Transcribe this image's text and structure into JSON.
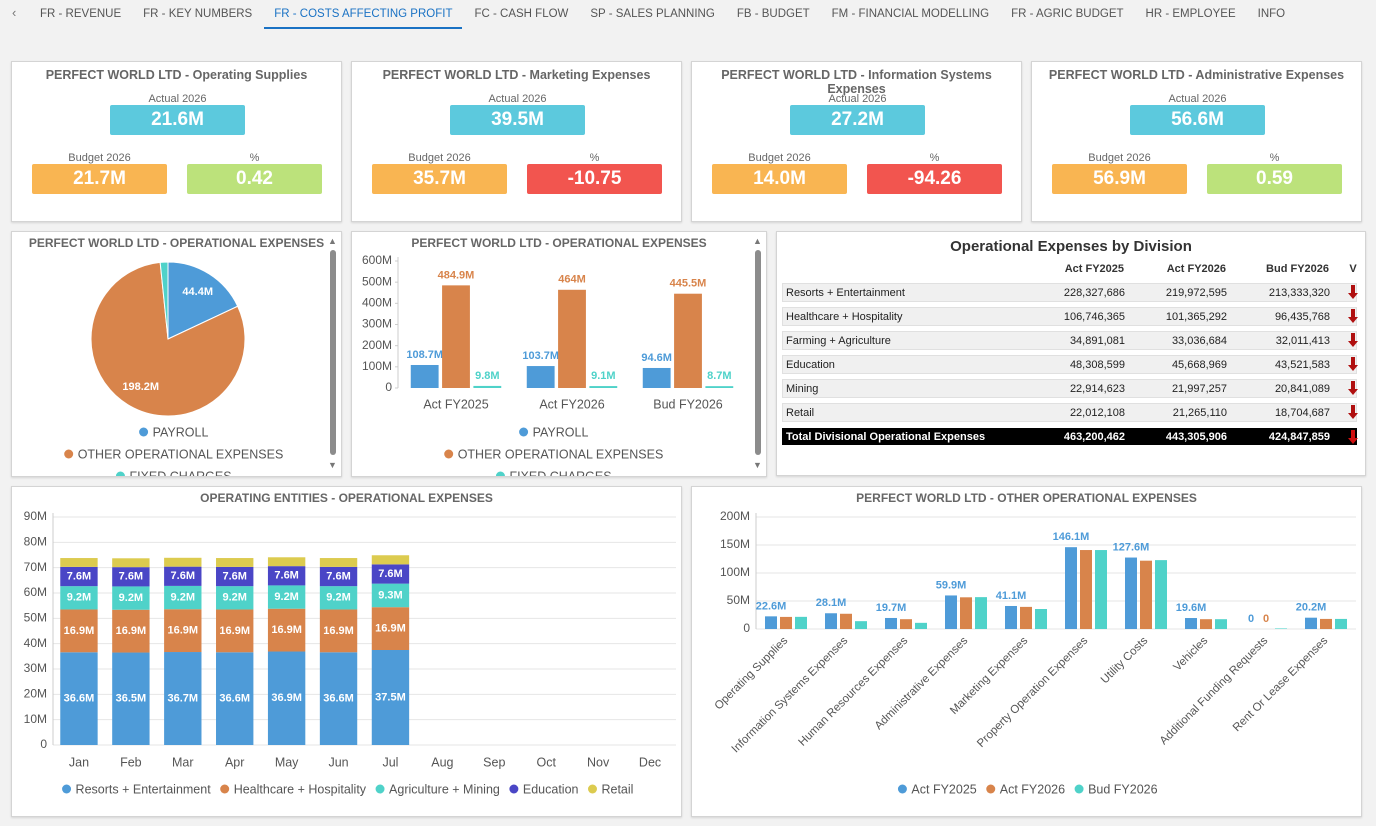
{
  "tabs": [
    "FR - REVENUE",
    "FR - KEY NUMBERS",
    "FR - COSTS AFFECTING PROFIT",
    "FC - CASH FLOW",
    "SP - SALES PLANNING",
    "FB - BUDGET",
    "FM - FINANCIAL MODELLING",
    "FR - AGRIC BUDGET",
    "HR - EMPLOYEE",
    "INFO"
  ],
  "active_tab": 2,
  "kpi_cards": [
    {
      "title": "PERFECT WORLD LTD - Operating Supplies",
      "actual_label": "Actual 2026",
      "actual": "21.6M",
      "budget_label": "Budget 2026",
      "budget": "21.7M",
      "pct_label": "%",
      "pct": 0.42
    },
    {
      "title": "PERFECT WORLD LTD - Marketing Expenses",
      "actual_label": "Actual 2026",
      "actual": "39.5M",
      "budget_label": "Budget 2026",
      "budget": "35.7M",
      "pct_label": "%",
      "pct": -10.75
    },
    {
      "title": "PERFECT WORLD LTD - Information Systems Expenses",
      "actual_label": "Actual 2026",
      "actual": "27.2M",
      "budget_label": "Budget 2026",
      "budget": "14.0M",
      "pct_label": "%",
      "pct": -94.26
    },
    {
      "title": "PERFECT WORLD LTD - Administrative Expenses",
      "actual_label": "Actual 2026",
      "actual": "56.6M",
      "budget_label": "Budget 2026",
      "budget": "56.9M",
      "pct_label": "%",
      "pct": 0.59
    }
  ],
  "table": {
    "title": "Operational Expenses by Division",
    "columns": [
      "Act FY2025",
      "Act FY2026",
      "Bud FY2026",
      "V"
    ],
    "rows": [
      {
        "name": "Resorts + Entertainment",
        "cells": [
          "228,327,686",
          "219,972,595",
          "213,333,320"
        ]
      },
      {
        "name": "Healthcare + Hospitality",
        "cells": [
          "106,746,365",
          "101,365,292",
          "96,435,768"
        ]
      },
      {
        "name": "Farming + Agriculture",
        "cells": [
          "34,891,081",
          "33,036,684",
          "32,011,413"
        ]
      },
      {
        "name": "Education",
        "cells": [
          "48,308,599",
          "45,668,969",
          "43,521,583"
        ]
      },
      {
        "name": "Mining",
        "cells": [
          "22,914,623",
          "21,997,257",
          "20,841,089"
        ]
      },
      {
        "name": "Retail",
        "cells": [
          "22,012,108",
          "21,265,110",
          "18,704,687"
        ]
      }
    ],
    "total": {
      "name": "Total Divisional Operational Expenses",
      "cells": [
        "463,200,462",
        "443,305,906",
        "424,847,859"
      ]
    }
  },
  "chart_data": [
    {
      "type": "pie",
      "title": "PERFECT WORLD LTD - OPERATIONAL EXPENSES",
      "categories": [
        "PAYROLL",
        "OTHER OPERATIONAL EXPENSES",
        "FIXED CHARGES"
      ],
      "values": [
        44.4,
        198.2,
        4.0
      ],
      "value_labels": [
        "44.4M",
        "198.2M",
        null
      ],
      "colors": [
        "#4e9bd8",
        "#d8844b",
        "#4fd2c9"
      ],
      "legend": "bottom"
    },
    {
      "type": "bar",
      "title": "PERFECT WORLD LTD - OPERATIONAL EXPENSES",
      "categories": [
        "Act FY2025",
        "Act FY2026",
        "Bud FY2026"
      ],
      "series": [
        {
          "name": "PAYROLL",
          "color": "#4e9bd8",
          "values": [
            108.7,
            103.7,
            94.6
          ],
          "value_labels": [
            "108.7M",
            "103.7M",
            "94.6M"
          ]
        },
        {
          "name": "OTHER OPERATIONAL EXPENSES",
          "color": "#d8844b",
          "values": [
            484.9,
            464,
            445.5
          ],
          "value_labels": [
            "484.9M",
            "464M",
            "445.5M"
          ]
        },
        {
          "name": "FIXED CHARGES",
          "color": "#4fd2c9",
          "values": [
            9.8,
            9.1,
            8.7
          ],
          "value_labels": [
            "9.8M",
            "9.1M",
            "8.7M"
          ]
        }
      ],
      "ylim": [
        0,
        600
      ],
      "yticks": [
        0,
        {
          "value": 100,
          "label": "100M"
        },
        {
          "value": 200,
          "label": "200M"
        },
        {
          "value": 300,
          "label": "300M"
        },
        {
          "value": 400,
          "label": "400M"
        },
        {
          "value": 500,
          "label": "500M"
        },
        {
          "value": 600,
          "label": "600M"
        }
      ],
      "grid": false,
      "legend": "bottom"
    },
    {
      "type": "bar",
      "stacked": true,
      "title": "OPERATING ENTITIES - OPERATIONAL EXPENSES",
      "categories": [
        "Jan",
        "Feb",
        "Mar",
        "Apr",
        "May",
        "Jun",
        "Jul",
        "Aug",
        "Sep",
        "Oct",
        "Nov",
        "Dec"
      ],
      "series": [
        {
          "name": "Resorts + Entertainment",
          "color": "#4e9bd8",
          "values": [
            36.6,
            36.5,
            36.7,
            36.6,
            36.9,
            36.6,
            37.5,
            null,
            null,
            null,
            null,
            null
          ],
          "value_labels": [
            "36.6M",
            "36.5M",
            "36.7M",
            "36.6M",
            "36.9M",
            "36.6M",
            "37.5M",
            null,
            null,
            null,
            null,
            null
          ]
        },
        {
          "name": "Healthcare + Hospitality",
          "color": "#d8844b",
          "values": [
            16.9,
            16.9,
            16.9,
            16.9,
            16.9,
            16.9,
            16.9,
            null,
            null,
            null,
            null,
            null
          ],
          "value_labels": [
            "16.9M",
            "16.9M",
            "16.9M",
            "16.9M",
            "16.9M",
            "16.9M",
            "16.9M",
            null,
            null,
            null,
            null,
            null
          ]
        },
        {
          "name": "Agriculture + Mining",
          "color": "#4fd2c9",
          "values": [
            9.2,
            9.2,
            9.2,
            9.2,
            9.2,
            9.2,
            9.3,
            null,
            null,
            null,
            null,
            null
          ],
          "value_labels": [
            "9.2M",
            "9.2M",
            "9.2M",
            "9.2M",
            "9.2M",
            "9.2M",
            "9.3M",
            null,
            null,
            null,
            null,
            null
          ]
        },
        {
          "name": "Education",
          "color": "#4a46c6",
          "values": [
            7.6,
            7.6,
            7.6,
            7.6,
            7.6,
            7.6,
            7.6,
            null,
            null,
            null,
            null,
            null
          ],
          "value_labels": [
            "7.6M",
            "7.6M",
            "7.6M",
            "7.6M",
            "7.6M",
            "7.6M",
            "7.6M",
            null,
            null,
            null,
            null,
            null
          ]
        },
        {
          "name": "Retail",
          "color": "#dccb4f",
          "values": [
            3.5,
            3.5,
            3.5,
            3.5,
            3.5,
            3.5,
            3.6,
            null,
            null,
            null,
            null,
            null
          ]
        }
      ],
      "ylim": [
        0,
        90
      ],
      "yticks": [
        0,
        {
          "value": 10,
          "label": "10M"
        },
        {
          "value": 20,
          "label": "20M"
        },
        {
          "value": 30,
          "label": "30M"
        },
        {
          "value": 40,
          "label": "40M"
        },
        {
          "value": 50,
          "label": "50M"
        },
        {
          "value": 60,
          "label": "60M"
        },
        {
          "value": 70,
          "label": "70M"
        },
        {
          "value": 80,
          "label": "80M"
        },
        {
          "value": 90,
          "label": "90M"
        }
      ],
      "grid": true,
      "legend": "bottom"
    },
    {
      "type": "bar",
      "title": "PERFECT WORLD LTD - OTHER OPERATIONAL EXPENSES",
      "categories": [
        "Operating Supplies",
        "Information Systems Expenses",
        "Human Resources Expenses",
        "Administrative Expenses",
        "Marketing Expenses",
        "Property Operation Expenses",
        "Utility Costs",
        "Vehicles",
        "Additional Funding Requests",
        "Rent Or Lease Expenses"
      ],
      "series": [
        {
          "name": "Act FY2025",
          "color": "#4e9bd8",
          "values": [
            22.6,
            28.1,
            19.7,
            59.9,
            41.1,
            146.1,
            127.6,
            19.6,
            0,
            20.2
          ],
          "value_labels": [
            "22.6M",
            "28.1M",
            "19.7M",
            "59.9M",
            "41.1M",
            "146.1M",
            "127.6M",
            "19.6M",
            "0",
            "20.2M"
          ]
        },
        {
          "name": "Act FY2026",
          "color": "#d8844b",
          "values": [
            21.6,
            27.2,
            17.5,
            56.6,
            39.5,
            141,
            122,
            17.5,
            0,
            18
          ],
          "value_labels": [
            null,
            null,
            null,
            null,
            null,
            null,
            null,
            null,
            "0",
            null
          ]
        },
        {
          "name": "Bud FY2026",
          "color": "#4fd2c9",
          "values": [
            21.7,
            14.0,
            11,
            56.9,
            35.7,
            141,
            123,
            17.5,
            1,
            18
          ]
        }
      ],
      "ylim": [
        0,
        200
      ],
      "yticks": [
        0,
        {
          "value": 50,
          "label": "50M"
        },
        {
          "value": 100,
          "label": "100M"
        },
        {
          "value": 150,
          "label": "150M"
        },
        {
          "value": 200,
          "label": "200M"
        }
      ],
      "grid": true,
      "legend": "bottom"
    }
  ]
}
